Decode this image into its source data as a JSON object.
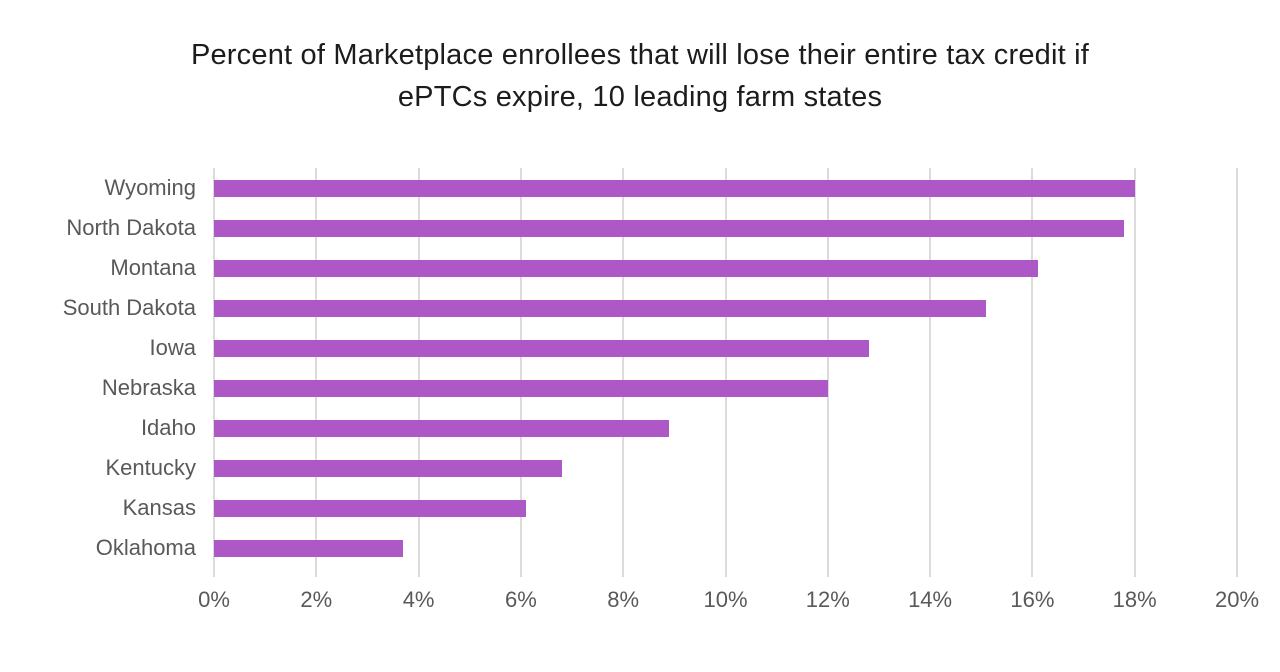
{
  "title": "Percent of Marketplace enrollees that will lose their entire tax credit if ePTCs expire, 10 leading farm states",
  "title_lines": [
    "Percent of Marketplace enrollees that will lose their entire tax credit if",
    "ePTCs expire, 10 leading farm states"
  ],
  "colors": {
    "bar": "#AE57C7",
    "gridline": "#DBDBDB",
    "axis_text": "#595959",
    "title_text": "#1C1C1C"
  },
  "chart_data": {
    "type": "bar",
    "orientation": "horizontal",
    "title": "Percent of Marketplace enrollees that will lose their entire tax credit if ePTCs expire, 10 leading farm states",
    "categories": [
      "Wyoming",
      "North Dakota",
      "Montana",
      "South Dakota",
      "Iowa",
      "Nebraska",
      "Idaho",
      "Kentucky",
      "Kansas",
      "Oklahoma"
    ],
    "values": [
      18.0,
      17.8,
      16.1,
      15.1,
      12.8,
      12.0,
      8.9,
      6.8,
      6.1,
      3.7
    ],
    "unit": "%",
    "xlabel": "",
    "ylabel": "",
    "xlim": [
      0,
      20
    ],
    "x_tick_labels": [
      "0%",
      "2%",
      "4%",
      "6%",
      "8%",
      "10%",
      "12%",
      "14%",
      "16%",
      "18%",
      "20%"
    ],
    "x_tick_values": [
      0,
      2,
      4,
      6,
      8,
      10,
      12,
      14,
      16,
      18,
      20
    ],
    "grid": "vertical",
    "legend": "none"
  }
}
